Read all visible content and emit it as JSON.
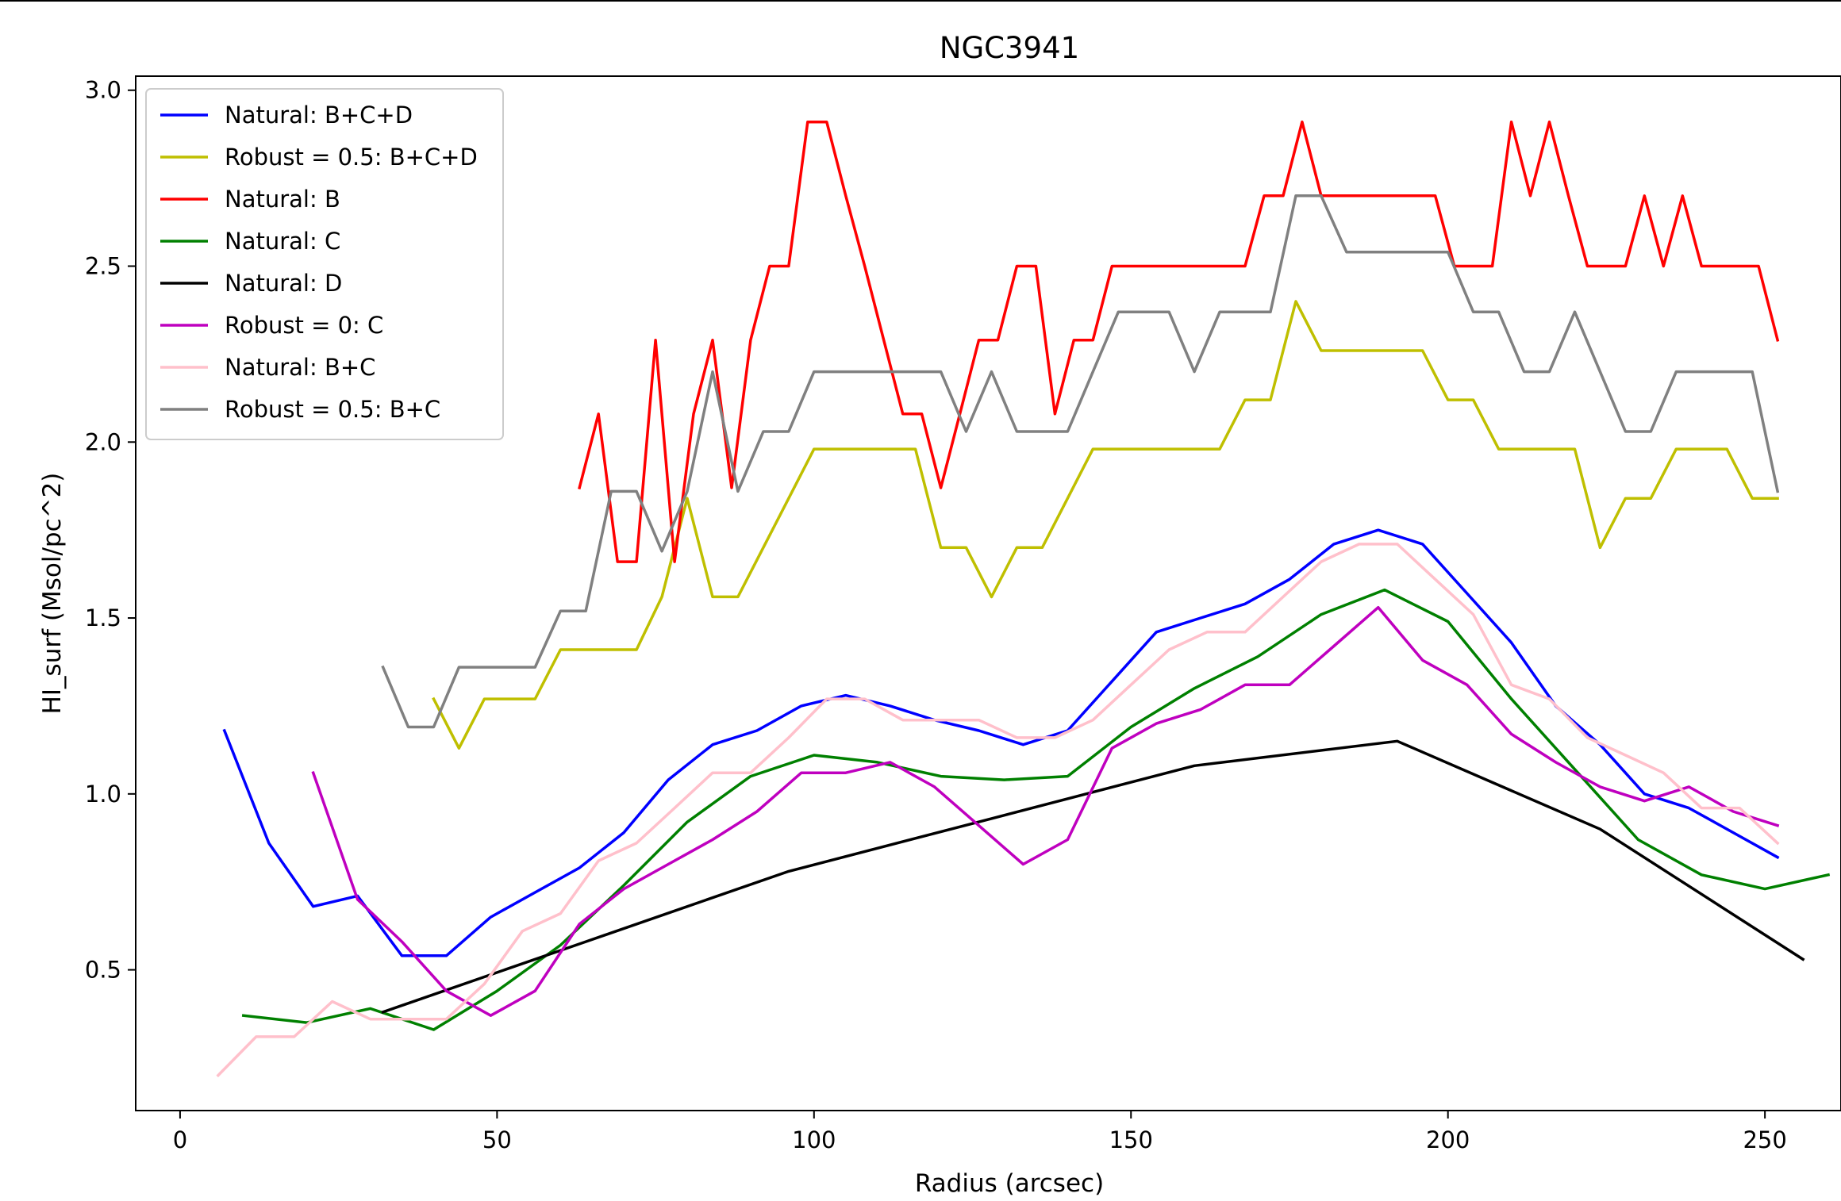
{
  "chart_data": {
    "type": "line",
    "title": "NGC3941",
    "xlabel": "Radius (arcsec)",
    "ylabel": "HI_surf (Msol/pc^2)",
    "xlim": [
      -7,
      262
    ],
    "ylim": [
      0.1,
      3.04
    ],
    "xticks": [
      0,
      50,
      100,
      150,
      200,
      250
    ],
    "yticks": [
      0.5,
      1.0,
      1.5,
      2.0,
      2.5,
      3.0
    ],
    "xtick_labels": [
      "0",
      "50",
      "100",
      "150",
      "200",
      "250"
    ],
    "ytick_labels": [
      "0.5",
      "1.0",
      "1.5",
      "2.0",
      "2.5",
      "3.0"
    ],
    "grid": false,
    "legend_position": "top-left",
    "series": [
      {
        "name": "Natural: B+C+D",
        "color": "#0000ff",
        "x": [
          7,
          14,
          21,
          28,
          35,
          42,
          49,
          56,
          63,
          70,
          77,
          84,
          91,
          98,
          105,
          112,
          119,
          126,
          133,
          140,
          147,
          154,
          161,
          168,
          175,
          182,
          189,
          196,
          203,
          210,
          217,
          224,
          231,
          238,
          245,
          252
        ],
        "y": [
          1.18,
          0.86,
          0.68,
          0.71,
          0.54,
          0.54,
          0.65,
          0.72,
          0.79,
          0.89,
          1.04,
          1.14,
          1.18,
          1.25,
          1.28,
          1.25,
          1.21,
          1.18,
          1.14,
          1.18,
          1.32,
          1.46,
          1.5,
          1.54,
          1.61,
          1.71,
          1.75,
          1.71,
          1.57,
          1.43,
          1.25,
          1.14,
          1.0,
          0.96,
          0.89,
          0.82
        ]
      },
      {
        "name": "Robust = 0.5: B+C+D",
        "color": "#bfbf00",
        "x": [
          40,
          44,
          48,
          52,
          56,
          60,
          64,
          68,
          72,
          76,
          80,
          84,
          88,
          92,
          96,
          100,
          104,
          108,
          112,
          116,
          120,
          124,
          128,
          132,
          136,
          140,
          144,
          148,
          152,
          156,
          160,
          164,
          168,
          172,
          176,
          180,
          184,
          188,
          192,
          196,
          200,
          204,
          208,
          212,
          216,
          220,
          224,
          228,
          232,
          236,
          240,
          244,
          248,
          252
        ],
        "y": [
          1.27,
          1.13,
          1.27,
          1.27,
          1.27,
          1.41,
          1.41,
          1.41,
          1.41,
          1.56,
          1.84,
          1.56,
          1.56,
          1.7,
          1.84,
          1.98,
          1.98,
          1.98,
          1.98,
          1.98,
          1.7,
          1.7,
          1.56,
          1.7,
          1.7,
          1.84,
          1.98,
          1.98,
          1.98,
          1.98,
          1.98,
          1.98,
          2.12,
          2.12,
          2.4,
          2.26,
          2.26,
          2.26,
          2.26,
          2.26,
          2.12,
          2.12,
          1.98,
          1.98,
          1.98,
          1.98,
          1.7,
          1.84,
          1.84,
          1.98,
          1.98,
          1.98,
          1.84,
          1.84
        ]
      },
      {
        "name": "Natural: B",
        "color": "#ff0000",
        "x": [
          63,
          66,
          69,
          72,
          75,
          78,
          81,
          84,
          87,
          90,
          93,
          96,
          99,
          102,
          105,
          108,
          111,
          114,
          117,
          120,
          123,
          126,
          129,
          132,
          135,
          138,
          141,
          144,
          147,
          150,
          153,
          156,
          159,
          162,
          165,
          168,
          171,
          174,
          177,
          180,
          183,
          186,
          189,
          192,
          195,
          198,
          201,
          204,
          207,
          210,
          213,
          216,
          219,
          222,
          225,
          228,
          231,
          234,
          237,
          240,
          243,
          246,
          249,
          252
        ],
        "y": [
          1.87,
          2.08,
          1.66,
          1.66,
          2.29,
          1.66,
          2.08,
          2.29,
          1.87,
          2.29,
          2.5,
          2.5,
          2.91,
          2.91,
          2.7,
          2.5,
          2.29,
          2.08,
          2.08,
          1.87,
          2.08,
          2.29,
          2.29,
          2.5,
          2.5,
          2.08,
          2.29,
          2.29,
          2.5,
          2.5,
          2.5,
          2.5,
          2.5,
          2.5,
          2.5,
          2.5,
          2.7,
          2.7,
          2.91,
          2.7,
          2.7,
          2.7,
          2.7,
          2.7,
          2.7,
          2.7,
          2.5,
          2.5,
          2.5,
          2.91,
          2.7,
          2.91,
          2.7,
          2.5,
          2.5,
          2.5,
          2.7,
          2.5,
          2.7,
          2.5,
          2.5,
          2.5,
          2.5,
          2.29
        ]
      },
      {
        "name": "Natural: C",
        "color": "#008000",
        "x": [
          10,
          20,
          30,
          40,
          50,
          60,
          70,
          80,
          90,
          100,
          110,
          120,
          130,
          140,
          150,
          160,
          170,
          180,
          190,
          200,
          210,
          220,
          230,
          240,
          250,
          260
        ],
        "y": [
          0.37,
          0.35,
          0.39,
          0.33,
          0.44,
          0.57,
          0.74,
          0.92,
          1.05,
          1.11,
          1.09,
          1.05,
          1.04,
          1.05,
          1.19,
          1.3,
          1.39,
          1.51,
          1.58,
          1.49,
          1.27,
          1.07,
          0.87,
          0.77,
          0.73,
          0.77
        ]
      },
      {
        "name": "Natural: D",
        "color": "#000000",
        "x": [
          32,
          64,
          96,
          128,
          160,
          192,
          224,
          256
        ],
        "y": [
          0.38,
          0.58,
          0.78,
          0.93,
          1.08,
          1.15,
          0.9,
          0.53
        ]
      },
      {
        "name": "Robust = 0: C",
        "color": "#bf00bf",
        "x": [
          21,
          28,
          35,
          42,
          49,
          56,
          63,
          70,
          77,
          84,
          91,
          98,
          105,
          112,
          119,
          126,
          133,
          140,
          147,
          154,
          161,
          168,
          175,
          182,
          189,
          196,
          203,
          210,
          217,
          224,
          231,
          238,
          245,
          252
        ],
        "y": [
          1.06,
          0.7,
          0.58,
          0.44,
          0.37,
          0.44,
          0.63,
          0.73,
          0.8,
          0.87,
          0.95,
          1.06,
          1.06,
          1.09,
          1.02,
          0.91,
          0.8,
          0.87,
          1.13,
          1.2,
          1.24,
          1.31,
          1.31,
          1.42,
          1.53,
          1.38,
          1.31,
          1.17,
          1.09,
          1.02,
          0.98,
          1.02,
          0.95,
          0.91
        ]
      },
      {
        "name": "Natural: B+C",
        "color": "#ffc0cb",
        "x": [
          6,
          12,
          18,
          24,
          30,
          36,
          42,
          48,
          54,
          60,
          66,
          72,
          78,
          84,
          90,
          96,
          102,
          108,
          114,
          120,
          126,
          132,
          138,
          144,
          150,
          156,
          162,
          168,
          174,
          180,
          186,
          192,
          198,
          204,
          210,
          216,
          222,
          228,
          234,
          240,
          246,
          252
        ],
        "y": [
          0.2,
          0.31,
          0.31,
          0.41,
          0.36,
          0.36,
          0.36,
          0.46,
          0.61,
          0.66,
          0.81,
          0.86,
          0.96,
          1.06,
          1.06,
          1.16,
          1.27,
          1.27,
          1.21,
          1.21,
          1.21,
          1.16,
          1.16,
          1.21,
          1.31,
          1.41,
          1.46,
          1.46,
          1.56,
          1.66,
          1.71,
          1.71,
          1.61,
          1.51,
          1.31,
          1.27,
          1.16,
          1.11,
          1.06,
          0.96,
          0.96,
          0.86
        ]
      },
      {
        "name": "Robust = 0.5: B+C",
        "color": "#808080",
        "x": [
          32,
          36,
          40,
          44,
          48,
          52,
          56,
          60,
          64,
          68,
          72,
          76,
          80,
          84,
          88,
          92,
          96,
          100,
          104,
          108,
          112,
          116,
          120,
          124,
          128,
          132,
          136,
          140,
          144,
          148,
          152,
          156,
          160,
          164,
          168,
          172,
          176,
          180,
          184,
          188,
          192,
          196,
          200,
          204,
          208,
          212,
          216,
          220,
          224,
          228,
          232,
          236,
          240,
          244,
          248,
          252
        ],
        "y": [
          1.36,
          1.19,
          1.19,
          1.36,
          1.36,
          1.36,
          1.36,
          1.52,
          1.52,
          1.86,
          1.86,
          1.69,
          1.86,
          2.2,
          1.86,
          2.03,
          2.03,
          2.2,
          2.2,
          2.2,
          2.2,
          2.2,
          2.2,
          2.03,
          2.2,
          2.03,
          2.03,
          2.03,
          2.2,
          2.37,
          2.37,
          2.37,
          2.2,
          2.37,
          2.37,
          2.37,
          2.7,
          2.7,
          2.54,
          2.54,
          2.54,
          2.54,
          2.54,
          2.37,
          2.37,
          2.2,
          2.2,
          2.37,
          2.2,
          2.03,
          2.03,
          2.2,
          2.2,
          2.2,
          2.2,
          1.86
        ]
      }
    ]
  }
}
